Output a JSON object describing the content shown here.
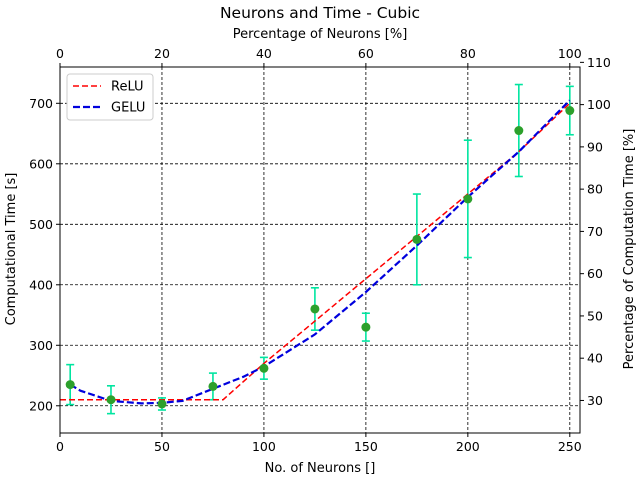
{
  "chart_data": {
    "type": "line",
    "title": "Neurons and Time - Cubic",
    "xlabel": "No. of Neurons []",
    "ylabel": "Computational Time [s]",
    "x2label": "Percentage of Neurons [%]",
    "y2label": "Percentage of Computation Time [%]",
    "xlim": [
      0,
      255
    ],
    "ylim": [
      155,
      760
    ],
    "x2lim": [
      0,
      102
    ],
    "y2lim": [
      22.3,
      108.9
    ],
    "xticks": [
      0,
      50,
      100,
      150,
      200,
      250
    ],
    "yticks": [
      200,
      300,
      400,
      500,
      600,
      700
    ],
    "x2ticks": [
      0,
      20,
      40,
      60,
      80,
      100
    ],
    "y2ticks": [
      30,
      40,
      50,
      60,
      70,
      80,
      90,
      100,
      110
    ],
    "grid": true,
    "legend_position": "upper-left",
    "series": [
      {
        "name": "ReLU",
        "style": "dashed",
        "color": "#ff0000",
        "x": [
          0,
          80,
          100,
          125,
          150,
          175,
          200,
          225,
          250
        ],
        "y": [
          210,
          210,
          270,
          340,
          410,
          480,
          550,
          620,
          700
        ]
      },
      {
        "name": "GELU",
        "style": "dashed",
        "color": "#0000dd",
        "x": [
          5,
          10,
          25,
          40,
          50,
          60,
          75,
          90,
          100,
          125,
          150,
          175,
          200,
          225,
          250
        ],
        "y": [
          235,
          225,
          208,
          204,
          205,
          208,
          228,
          248,
          265,
          318,
          388,
          465,
          545,
          620,
          705
        ]
      }
    ],
    "scatter": {
      "color": "#2ca02c",
      "errorbar_color": "#00e5a0",
      "x": [
        5,
        25,
        50,
        75,
        100,
        125,
        150,
        175,
        200,
        225,
        250
      ],
      "y": [
        235,
        210,
        203,
        232,
        262,
        360,
        330,
        475,
        542,
        655,
        688
      ],
      "err": [
        33,
        23,
        10,
        22,
        18,
        35,
        23,
        75,
        97,
        76,
        40
      ]
    }
  }
}
